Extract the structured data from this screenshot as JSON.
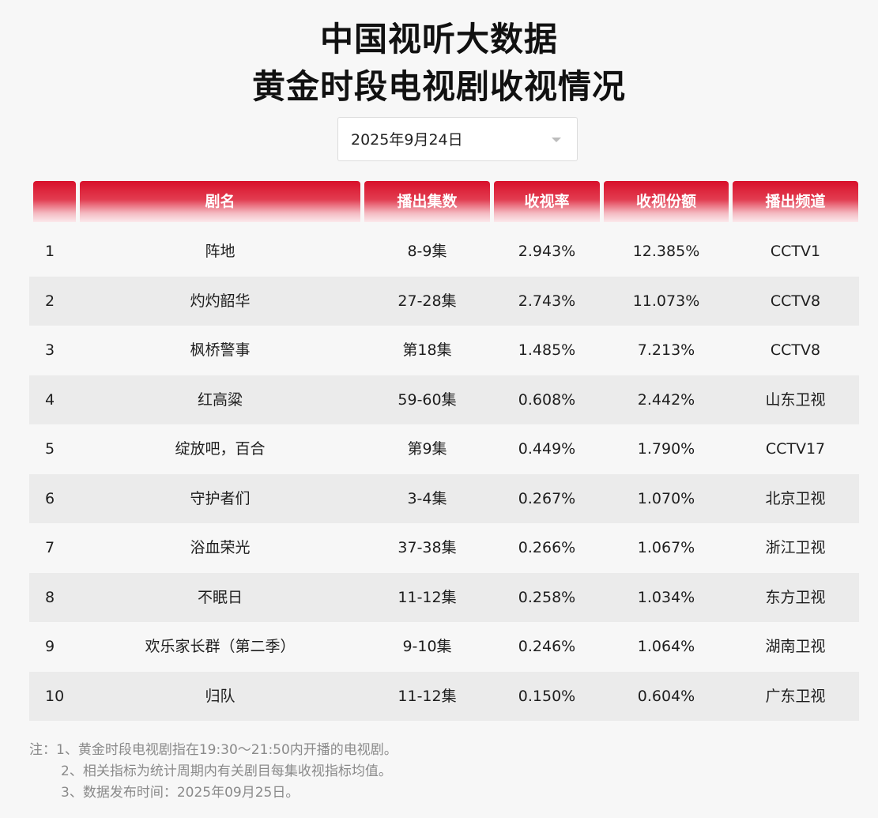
{
  "title_line1": "中国视听大数据",
  "title_line2": "黄金时段电视剧收视情况",
  "date_selector": {
    "value": "2025年9月24日"
  },
  "table": {
    "headers": [
      "",
      "剧名",
      "播出集数",
      "收视率",
      "收视份额",
      "播出频道"
    ],
    "rows": [
      [
        "1",
        "阵地",
        "8-9集",
        "2.943%",
        "12.385%",
        "CCTV1"
      ],
      [
        "2",
        "灼灼韶华",
        "27-28集",
        "2.743%",
        "11.073%",
        "CCTV8"
      ],
      [
        "3",
        "枫桥警事",
        "第18集",
        "1.485%",
        "7.213%",
        "CCTV8"
      ],
      [
        "4",
        "红高粱",
        "59-60集",
        "0.608%",
        "2.442%",
        "山东卫视"
      ],
      [
        "5",
        "绽放吧，百合",
        "第9集",
        "0.449%",
        "1.790%",
        "CCTV17"
      ],
      [
        "6",
        "守护者们",
        "3-4集",
        "0.267%",
        "1.070%",
        "北京卫视"
      ],
      [
        "7",
        "浴血荣光",
        "37-38集",
        "0.266%",
        "1.067%",
        "浙江卫视"
      ],
      [
        "8",
        "不眠日",
        "11-12集",
        "0.258%",
        "1.034%",
        "东方卫视"
      ],
      [
        "9",
        "欢乐家长群（第二季）",
        "9-10集",
        "0.246%",
        "1.064%",
        "湖南卫视"
      ],
      [
        "10",
        "归队",
        "11-12集",
        "0.150%",
        "0.604%",
        "广东卫视"
      ]
    ]
  },
  "notes": [
    "注：1、黄金时段电视剧指在19:30～21:50内开播的电视剧。",
    "2、相关指标为统计周期内有关剧目每集收视指标均值。",
    "3、数据发布时间：2025年09月25日。"
  ],
  "colors": {
    "header_red": "#d8102b",
    "alt_row": "#ebebeb"
  }
}
